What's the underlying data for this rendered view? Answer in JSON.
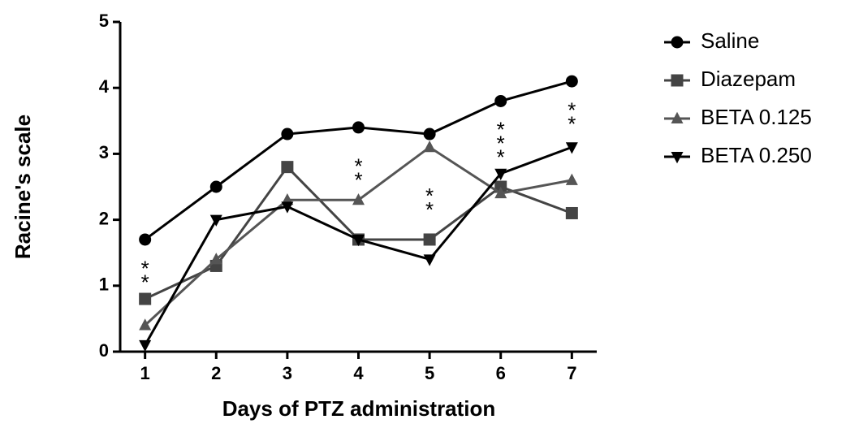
{
  "chart_data": {
    "type": "line",
    "x_label": "Days of PTZ administration",
    "y_label": "Racine's scale",
    "x": [
      1,
      2,
      3,
      4,
      5,
      6,
      7
    ],
    "xlim": [
      0.65,
      7.35
    ],
    "xticks": [
      1,
      2,
      3,
      4,
      5,
      6,
      7
    ],
    "ylim": [
      0,
      5
    ],
    "yticks": [
      0,
      1,
      2,
      3,
      4,
      5
    ],
    "legend": "right",
    "series": [
      {
        "name": "Saline",
        "color": "#000000",
        "marker": "circle",
        "values": [
          1.7,
          2.5,
          3.3,
          3.4,
          3.3,
          3.8,
          4.1
        ]
      },
      {
        "name": "Diazepam",
        "color": "#444444",
        "marker": "square",
        "values": [
          0.8,
          1.3,
          2.8,
          1.7,
          1.7,
          2.5,
          2.1
        ]
      },
      {
        "name": "BETA 0.125",
        "color": "#555555",
        "marker": "triangle",
        "values": [
          0.4,
          1.4,
          2.3,
          2.3,
          3.1,
          2.4,
          2.6
        ]
      },
      {
        "name": "BETA 0.250",
        "color": "#000000",
        "marker": "triangle-down",
        "values": [
          0.1,
          2.0,
          2.2,
          1.7,
          1.4,
          2.7,
          3.1
        ]
      }
    ],
    "annotations": [
      {
        "x": 1,
        "y": 1.1,
        "labels": [
          "*",
          "*"
        ]
      },
      {
        "x": 4,
        "y": 2.65,
        "labels": [
          "*",
          "*"
        ]
      },
      {
        "x": 5,
        "y": 2.2,
        "labels": [
          "*",
          "*"
        ]
      },
      {
        "x": 6,
        "y": 3.0,
        "labels": [
          "*",
          "*",
          "*"
        ]
      },
      {
        "x": 7,
        "y": 3.5,
        "labels": [
          "*",
          "*"
        ]
      }
    ]
  }
}
